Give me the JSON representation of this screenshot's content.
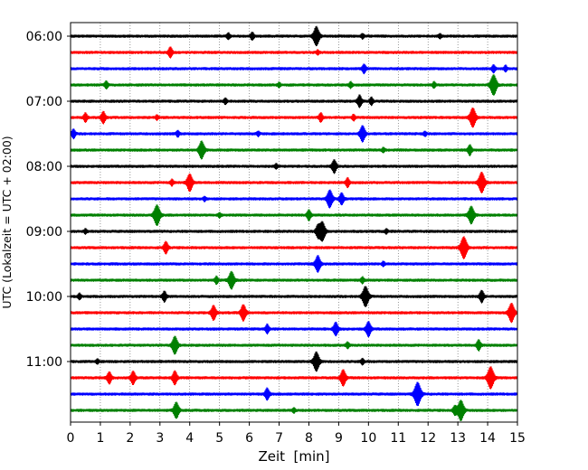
{
  "chart_data": {
    "type": "line",
    "title": "",
    "xlabel": "Zeit  [min]",
    "ylabel": "UTC (Lokalzeit = UTC + 02:00)",
    "xlim": [
      0,
      15
    ],
    "x_ticks": [
      0,
      1,
      2,
      3,
      4,
      5,
      6,
      7,
      8,
      9,
      10,
      11,
      12,
      13,
      14,
      15
    ],
    "x_grid": true,
    "y_tick_labels": [
      "06:00",
      "07:00",
      "08:00",
      "09:00",
      "10:00",
      "11:00"
    ],
    "trace_colors": [
      "#000000",
      "#ff0000",
      "#0000ff",
      "#008000"
    ],
    "traces": [
      {
        "start": "06:00",
        "events": [
          [
            5.3,
            0.4
          ],
          [
            6.1,
            0.5
          ],
          [
            8.25,
            1.3
          ],
          [
            9.8,
            0.3
          ],
          [
            12.4,
            0.3
          ]
        ]
      },
      {
        "start": "06:15",
        "events": [
          [
            3.35,
            0.7
          ],
          [
            8.3,
            0.3
          ]
        ]
      },
      {
        "start": "06:30",
        "events": [
          [
            9.85,
            0.6
          ],
          [
            14.2,
            0.5
          ],
          [
            14.6,
            0.4
          ]
        ]
      },
      {
        "start": "06:45",
        "events": [
          [
            1.2,
            0.5
          ],
          [
            7.0,
            0.3
          ],
          [
            9.4,
            0.4
          ],
          [
            12.2,
            0.4
          ],
          [
            14.2,
            1.4
          ]
        ]
      },
      {
        "start": "07:00",
        "events": [
          [
            5.2,
            0.4
          ],
          [
            9.7,
            0.8
          ],
          [
            10.1,
            0.5
          ]
        ]
      },
      {
        "start": "07:15",
        "events": [
          [
            0.5,
            0.6
          ],
          [
            1.1,
            0.8
          ],
          [
            2.9,
            0.3
          ],
          [
            8.4,
            0.6
          ],
          [
            9.5,
            0.4
          ],
          [
            13.5,
            1.3
          ]
        ]
      },
      {
        "start": "07:30",
        "events": [
          [
            0.1,
            0.6
          ],
          [
            3.6,
            0.4
          ],
          [
            6.3,
            0.3
          ],
          [
            9.8,
            1.1
          ],
          [
            11.9,
            0.3
          ]
        ]
      },
      {
        "start": "07:45",
        "events": [
          [
            4.4,
            1.2
          ],
          [
            10.5,
            0.3
          ],
          [
            13.4,
            0.7
          ]
        ]
      },
      {
        "start": "08:00",
        "events": [
          [
            6.9,
            0.3
          ],
          [
            8.85,
            0.9
          ]
        ]
      },
      {
        "start": "08:15",
        "events": [
          [
            3.4,
            0.4
          ],
          [
            4.0,
            1.2
          ],
          [
            9.3,
            0.6
          ],
          [
            13.8,
            1.4
          ]
        ]
      },
      {
        "start": "08:30",
        "events": [
          [
            4.5,
            0.3
          ],
          [
            8.7,
            1.2
          ],
          [
            9.1,
            0.8
          ]
        ]
      },
      {
        "start": "08:45",
        "events": [
          [
            2.9,
            1.4
          ],
          [
            5.0,
            0.3
          ],
          [
            8.0,
            0.7
          ],
          [
            13.45,
            1.2
          ]
        ]
      },
      {
        "start": "09:00",
        "events": [
          [
            0.5,
            0.3
          ],
          [
            8.3,
            0.8
          ],
          [
            8.45,
            1.3
          ],
          [
            10.6,
            0.3
          ]
        ]
      },
      {
        "start": "09:15",
        "events": [
          [
            3.2,
            0.8
          ],
          [
            13.2,
            1.5
          ]
        ]
      },
      {
        "start": "09:30",
        "events": [
          [
            8.3,
            1.1
          ],
          [
            10.5,
            0.3
          ]
        ]
      },
      {
        "start": "09:45",
        "events": [
          [
            4.9,
            0.5
          ],
          [
            5.4,
            1.2
          ],
          [
            9.8,
            0.4
          ]
        ]
      },
      {
        "start": "10:00",
        "events": [
          [
            0.3,
            0.4
          ],
          [
            3.15,
            0.7
          ],
          [
            9.9,
            1.4
          ],
          [
            13.8,
            0.8
          ]
        ]
      },
      {
        "start": "10:15",
        "events": [
          [
            4.8,
            1.0
          ],
          [
            5.8,
            1.1
          ],
          [
            14.8,
            1.3
          ]
        ]
      },
      {
        "start": "10:30",
        "events": [
          [
            6.6,
            0.6
          ],
          [
            8.9,
            0.9
          ],
          [
            10.0,
            1.0
          ]
        ]
      },
      {
        "start": "10:45",
        "events": [
          [
            3.5,
            1.2
          ],
          [
            9.3,
            0.4
          ],
          [
            13.7,
            0.7
          ]
        ]
      },
      {
        "start": "11:00",
        "events": [
          [
            0.9,
            0.3
          ],
          [
            8.25,
            1.3
          ],
          [
            9.8,
            0.4
          ]
        ]
      },
      {
        "start": "11:15",
        "events": [
          [
            1.3,
            0.8
          ],
          [
            2.1,
            0.9
          ],
          [
            3.5,
            0.9
          ],
          [
            9.15,
            1.1
          ],
          [
            14.1,
            1.5
          ]
        ]
      },
      {
        "start": "11:30",
        "events": [
          [
            6.6,
            0.8
          ],
          [
            11.65,
            1.6
          ]
        ]
      },
      {
        "start": "11:45",
        "events": [
          [
            3.55,
            1.1
          ],
          [
            7.5,
            0.3
          ],
          [
            12.9,
            0.6
          ],
          [
            13.1,
            1.4
          ]
        ]
      }
    ]
  }
}
